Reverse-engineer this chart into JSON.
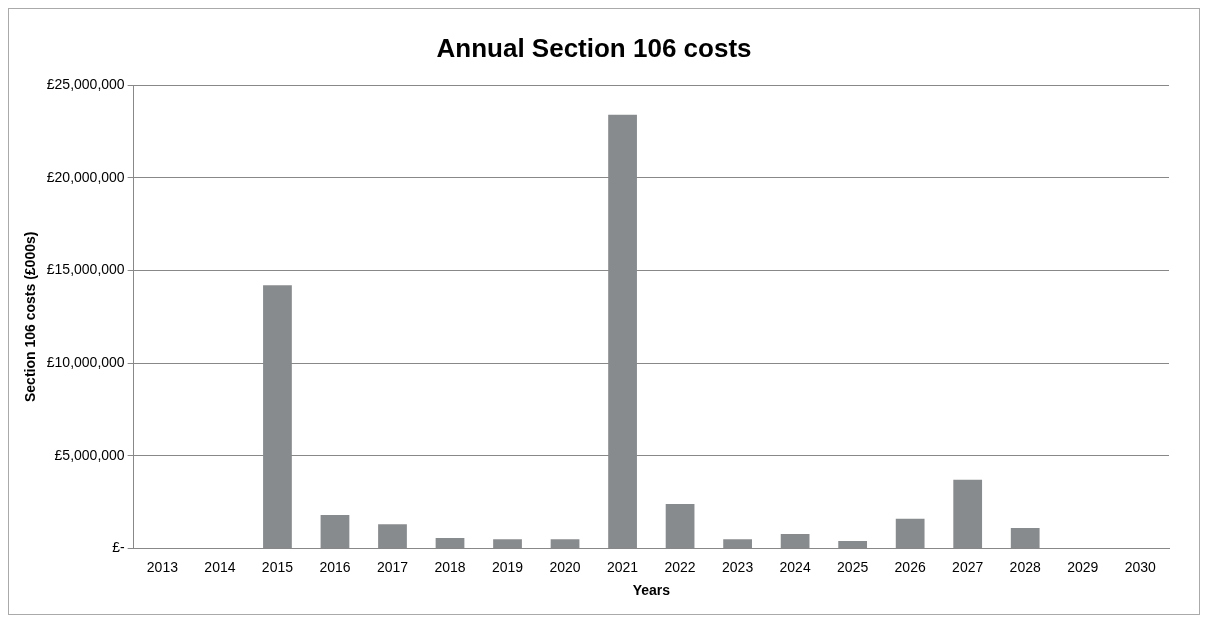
{
  "chart_data": {
    "type": "bar",
    "title": "Annual Section 106 costs",
    "xlabel": "Years",
    "ylabel": "Section 106 costs (£000s)",
    "categories": [
      "2013",
      "2014",
      "2015",
      "2016",
      "2017",
      "2018",
      "2019",
      "2020",
      "2021",
      "2022",
      "2023",
      "2024",
      "2025",
      "2026",
      "2027",
      "2028",
      "2029",
      "2030"
    ],
    "values": [
      0,
      0,
      14200000,
      1800000,
      1300000,
      560000,
      500000,
      500000,
      23400000,
      2400000,
      500000,
      780000,
      400000,
      1600000,
      3700000,
      1100000,
      0,
      0
    ],
    "color": "#888b8d",
    "ylim": [
      0,
      25000000
    ],
    "yticks": [
      {
        "value": 0,
        "label": "£-"
      },
      {
        "value": 5000000,
        "label": "£5,000,000"
      },
      {
        "value": 10000000,
        "label": "£10,000,000"
      },
      {
        "value": 15000000,
        "label": "£15,000,000"
      },
      {
        "value": 20000000,
        "label": "£20,000,000"
      },
      {
        "value": 25000000,
        "label": "£25,000,000"
      }
    ],
    "grid": "y",
    "legend": false
  }
}
